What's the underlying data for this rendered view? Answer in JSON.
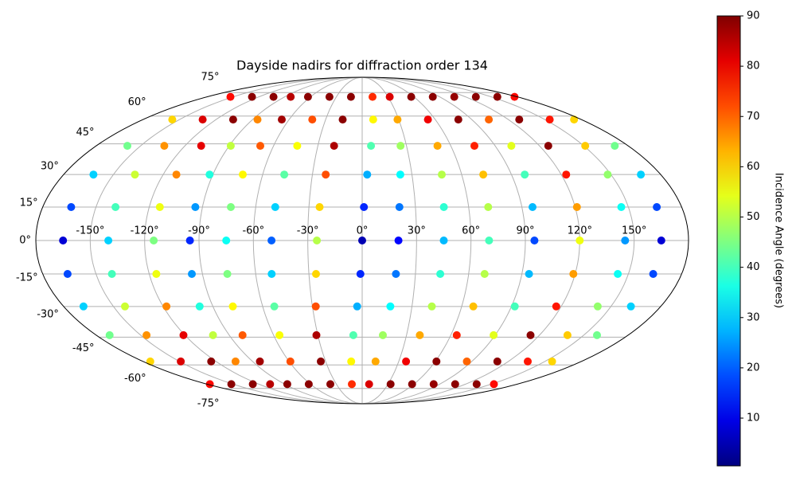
{
  "chart_data": {
    "type": "scatter",
    "projection": "mollweide",
    "title": "Dayside nadirs for diffraction order 134",
    "colorbar_label": "Incidence Angle (degrees)",
    "colormap": "jet",
    "clim": [
      0.5,
      90
    ],
    "cticks": [
      10,
      20,
      30,
      40,
      50,
      60,
      70,
      80,
      90
    ],
    "grid": true,
    "xlim": [
      -180,
      180
    ],
    "ylim": [
      -90,
      90
    ],
    "xticks": [
      {
        "value": -150,
        "label": "-150°"
      },
      {
        "value": -120,
        "label": "-120°"
      },
      {
        "value": -90,
        "label": "-90°"
      },
      {
        "value": -60,
        "label": "-60°"
      },
      {
        "value": -30,
        "label": "-30°"
      },
      {
        "value": 0,
        "label": "0°"
      },
      {
        "value": 30,
        "label": "30°"
      },
      {
        "value": 60,
        "label": "60°"
      },
      {
        "value": 90,
        "label": "90°"
      },
      {
        "value": 120,
        "label": "120°"
      },
      {
        "value": 150,
        "label": "150°"
      }
    ],
    "yticks": [
      {
        "value": -75,
        "label": "-75°"
      },
      {
        "value": -60,
        "label": "-60°"
      },
      {
        "value": -45,
        "label": "-45°"
      },
      {
        "value": -30,
        "label": "-30°"
      },
      {
        "value": -15,
        "label": "-15°"
      },
      {
        "value": 0,
        "label": "0°"
      },
      {
        "value": 15,
        "label": "15°"
      },
      {
        "value": 30,
        "label": "30°"
      },
      {
        "value": 45,
        "label": "45°"
      },
      {
        "value": 60,
        "label": "60°"
      },
      {
        "value": 75,
        "label": "75°"
      }
    ],
    "series": [
      {
        "x": [
          -177,
          -174,
          -171,
          -168,
          -166,
          -165,
          -164,
          -162,
          -159,
          -156,
          -153
        ],
        "y": [
          -72,
          -58,
          -44,
          -30,
          -15,
          0,
          15,
          30,
          44,
          58,
          72
        ],
        "values": [
          78,
          60,
          44,
          30,
          18,
          8,
          18,
          30,
          44,
          60,
          78
        ]
      },
      {
        "x": [
          -152,
          -149,
          -146,
          -143,
          -141,
          -140,
          -139,
          -137,
          -134,
          -131,
          -128
        ],
        "y": [
          -72,
          -58,
          -44,
          -30,
          -15,
          0,
          15,
          30,
          44,
          58,
          72
        ],
        "values": [
          89,
          82,
          66,
          52,
          40,
          30,
          40,
          52,
          66,
          82,
          89
        ]
      },
      {
        "x": [
          -127,
          -124,
          -121,
          -118,
          -116,
          -115,
          -114,
          -112,
          -109,
          -106,
          -103
        ],
        "y": [
          -72,
          -58,
          -44,
          -30,
          -15,
          0,
          15,
          30,
          44,
          58,
          72
        ],
        "values": [
          89,
          89,
          81,
          67,
          55,
          45,
          55,
          67,
          81,
          89,
          89
        ]
      },
      {
        "x": [
          -107,
          -104,
          -101,
          -98,
          -96,
          -95,
          -94,
          -92,
          -89,
          -86,
          -83
        ],
        "y": [
          -72,
          -58,
          -44,
          -30,
          -15,
          0,
          15,
          30,
          44,
          58,
          72
        ],
        "values": [
          85,
          67,
          51,
          37,
          25,
          15,
          25,
          37,
          51,
          67,
          85
        ]
      },
      {
        "x": [
          -87,
          -84,
          -81,
          -78,
          -76,
          -75,
          -74,
          -72,
          -69,
          -66,
          -63
        ],
        "y": [
          -72,
          -58,
          -44,
          -30,
          -15,
          0,
          15,
          30,
          44,
          58,
          72
        ],
        "values": [
          89,
          87,
          71,
          57,
          45,
          35,
          45,
          57,
          71,
          87,
          89
        ]
      },
      {
        "x": [
          -62,
          -59,
          -56,
          -53,
          -51,
          -50,
          -49,
          -47,
          -44,
          -41,
          -38
        ],
        "y": [
          -72,
          -58,
          -44,
          -30,
          -15,
          0,
          15,
          30,
          44,
          58,
          72
        ],
        "values": [
          89,
          72,
          56,
          42,
          30,
          20,
          30,
          42,
          56,
          72,
          89
        ]
      },
      {
        "x": [
          -37,
          -34,
          -31,
          -28,
          -26,
          -25,
          -24,
          -22,
          -19,
          -16,
          -13
        ],
        "y": [
          -72,
          -58,
          -44,
          -30,
          -15,
          0,
          15,
          30,
          44,
          58,
          72
        ],
        "values": [
          89,
          89,
          86,
          72,
          60,
          50,
          60,
          72,
          86,
          89,
          89
        ]
      },
      {
        "x": [
          -12,
          -9,
          -6,
          -3,
          -1,
          0,
          1,
          3,
          6,
          9,
          12
        ],
        "y": [
          -72,
          -58,
          -44,
          -30,
          -15,
          0,
          15,
          30,
          44,
          58,
          72
        ],
        "values": [
          75,
          57,
          41,
          27,
          15,
          5,
          15,
          27,
          41,
          57,
          75
        ]
      },
      {
        "x": [
          8,
          11,
          14,
          17,
          19,
          20,
          21,
          23,
          26,
          29,
          32
        ],
        "y": [
          -72,
          -58,
          -44,
          -30,
          -15,
          0,
          15,
          30,
          44,
          58,
          72
        ],
        "values": [
          82,
          64,
          48,
          34,
          22,
          12,
          22,
          34,
          48,
          64,
          82
        ]
      },
      {
        "x": [
          33,
          36,
          39,
          42,
          44,
          45,
          46,
          48,
          51,
          54,
          57
        ],
        "y": [
          -72,
          -58,
          -44,
          -30,
          -15,
          0,
          15,
          30,
          44,
          58,
          72
        ],
        "values": [
          89,
          80,
          64,
          50,
          38,
          28,
          38,
          50,
          64,
          80,
          89
        ]
      },
      {
        "x": [
          58,
          61,
          64,
          67,
          69,
          70,
          71,
          73,
          76,
          79,
          82
        ],
        "y": [
          -72,
          -58,
          -44,
          -30,
          -15,
          0,
          15,
          30,
          44,
          58,
          72
        ],
        "values": [
          89,
          89,
          76,
          62,
          50,
          40,
          50,
          62,
          76,
          89,
          89
        ]
      },
      {
        "x": [
          83,
          86,
          89,
          92,
          94,
          95,
          96,
          98,
          101,
          104,
          107
        ],
        "y": [
          -72,
          -58,
          -44,
          -30,
          -15,
          0,
          15,
          30,
          44,
          58,
          72
        ],
        "values": [
          88,
          70,
          54,
          40,
          28,
          18,
          28,
          40,
          54,
          70,
          88
        ]
      },
      {
        "x": [
          108,
          111,
          114,
          117,
          119,
          120,
          121,
          123,
          126,
          129,
          132
        ],
        "y": [
          -72,
          -58,
          -44,
          -30,
          -15,
          0,
          15,
          30,
          44,
          58,
          72
        ],
        "values": [
          89,
          89,
          89,
          77,
          65,
          55,
          65,
          77,
          89,
          89,
          89
        ]
      },
      {
        "x": [
          133,
          136,
          139,
          142,
          144,
          145,
          146,
          148,
          151,
          154,
          157
        ],
        "y": [
          -72,
          -58,
          -44,
          -30,
          -15,
          0,
          15,
          30,
          44,
          58,
          72
        ],
        "values": [
          89,
          77,
          61,
          47,
          35,
          25,
          35,
          47,
          61,
          77,
          89
        ]
      },
      {
        "x": [
          153,
          156,
          159,
          162,
          164,
          165,
          166,
          168,
          171,
          174,
          177
        ],
        "y": [
          -72,
          -58,
          -44,
          -30,
          -15,
          0,
          15,
          30,
          44,
          58,
          72
        ],
        "values": [
          78,
          60,
          44,
          30,
          18,
          8,
          18,
          30,
          44,
          60,
          78
        ]
      }
    ]
  }
}
